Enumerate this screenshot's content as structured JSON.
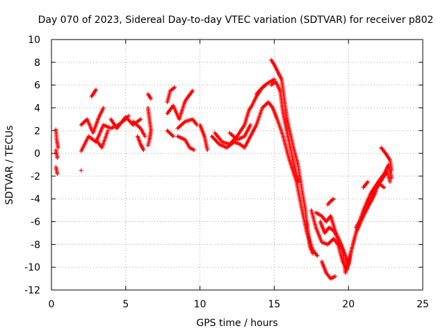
{
  "chart_data": {
    "type": "scatter",
    "title": "Day 070 of 2023, Sidereal Day-to-day VTEC variation (SDTVAR) for receiver p802",
    "xlabel": "GPS time / hours",
    "ylabel": "SDTVAR / TECUs",
    "xlim": [
      0,
      25
    ],
    "ylim": [
      -12,
      10
    ],
    "xticks": [
      0,
      5,
      10,
      15,
      20,
      25
    ],
    "yticks": [
      -12,
      -10,
      -8,
      -6,
      -4,
      -2,
      0,
      2,
      4,
      6,
      8,
      10
    ],
    "grid": true,
    "marker": "+",
    "color": "#ff0000",
    "segments": [
      [
        [
          0.3,
          2.1
        ],
        [
          0.35,
          1.2
        ],
        [
          0.45,
          0.5
        ]
      ],
      [
        [
          0.3,
          0.3
        ],
        [
          0.4,
          -0.4
        ]
      ],
      [
        [
          0.3,
          -1.2
        ],
        [
          0.4,
          -1.8
        ]
      ],
      [
        [
          2.0,
          -1.5
        ]
      ],
      [
        [
          2.0,
          0.2
        ],
        [
          2.5,
          1.5
        ],
        [
          3.0,
          1.0
        ],
        [
          3.5,
          2.5
        ],
        [
          4.0,
          2.2
        ],
        [
          4.5,
          2.5
        ],
        [
          5.0,
          3.0
        ],
        [
          5.2,
          3.3
        ]
      ],
      [
        [
          2.0,
          2.5
        ],
        [
          2.4,
          3.0
        ],
        [
          2.8,
          1.8
        ],
        [
          3.2,
          3.2
        ],
        [
          3.5,
          4.0
        ]
      ],
      [
        [
          2.7,
          5.0
        ],
        [
          3.0,
          5.6
        ]
      ],
      [
        [
          3.0,
          1.2
        ],
        [
          3.4,
          0.5
        ],
        [
          3.8,
          2.0
        ]
      ],
      [
        [
          4.0,
          3.0
        ],
        [
          4.4,
          2.2
        ],
        [
          5.0,
          3.2
        ],
        [
          5.5,
          2.5
        ],
        [
          5.8,
          2.8
        ],
        [
          6.0,
          3.0
        ]
      ],
      [
        [
          5.5,
          2.8
        ],
        [
          6.0,
          2.2
        ],
        [
          6.3,
          1.5
        ]
      ],
      [
        [
          5.8,
          1.5
        ],
        [
          6.0,
          0.8
        ],
        [
          6.2,
          0.3
        ]
      ],
      [
        [
          6.5,
          5.2
        ],
        [
          6.7,
          4.8
        ]
      ],
      [
        [
          6.5,
          4.0
        ],
        [
          6.6,
          3.0
        ],
        [
          6.7,
          2.0
        ],
        [
          6.6,
          1.2
        ],
        [
          6.5,
          0.7
        ]
      ],
      [
        [
          7.8,
          4.5
        ],
        [
          8.0,
          5.5
        ],
        [
          8.3,
          5.8
        ]
      ],
      [
        [
          7.8,
          3.5
        ],
        [
          8.2,
          4.2
        ],
        [
          8.6,
          3.0
        ],
        [
          9.0,
          4.6
        ],
        [
          9.5,
          5.5
        ]
      ],
      [
        [
          7.8,
          2.0
        ],
        [
          8.2,
          1.5
        ]
      ],
      [
        [
          8.5,
          2.2
        ],
        [
          9.0,
          2.8
        ],
        [
          9.5,
          3.0
        ],
        [
          9.8,
          2.5
        ]
      ],
      [
        [
          8.5,
          1.5
        ],
        [
          9.0,
          1.2
        ],
        [
          9.3,
          0.5
        ],
        [
          9.6,
          0.3
        ]
      ],
      [
        [
          10.0,
          2.5
        ],
        [
          10.3,
          1.5
        ],
        [
          10.5,
          0.3
        ]
      ],
      [
        [
          11.0,
          1.8
        ],
        [
          11.5,
          1.0
        ],
        [
          12.0,
          0.8
        ],
        [
          12.5,
          1.5
        ],
        [
          13.0,
          2.5
        ],
        [
          13.3,
          3.8
        ],
        [
          13.5,
          4.2
        ],
        [
          13.8,
          5.0
        ],
        [
          14.2,
          5.8
        ],
        [
          14.6,
          6.2
        ],
        [
          15.0,
          6.5
        ]
      ],
      [
        [
          10.8,
          1.5
        ],
        [
          11.3,
          0.8
        ],
        [
          11.8,
          0.5
        ],
        [
          12.3,
          1.0
        ],
        [
          12.7,
          0.8
        ],
        [
          13.0,
          0.5
        ],
        [
          13.4,
          1.5
        ],
        [
          13.8,
          2.5
        ],
        [
          14.2,
          4.0
        ],
        [
          14.6,
          4.5
        ],
        [
          14.9,
          4.0
        ],
        [
          15.2,
          3.0
        ],
        [
          15.6,
          1.5
        ],
        [
          16.0,
          -0.5
        ],
        [
          16.5,
          -2.5
        ],
        [
          16.8,
          -4.5
        ],
        [
          17.2,
          -7.0
        ],
        [
          17.6,
          -8.5
        ],
        [
          17.9,
          -9.0
        ]
      ],
      [
        [
          12.0,
          1.8
        ],
        [
          12.5,
          1.2
        ],
        [
          13.0,
          1.5
        ],
        [
          13.4,
          2.5
        ]
      ],
      [
        [
          13.8,
          5.2
        ],
        [
          14.0,
          5.5
        ],
        [
          14.4,
          6.0
        ]
      ],
      [
        [
          14.8,
          8.2
        ],
        [
          15.0,
          7.8
        ],
        [
          15.3,
          7.0
        ],
        [
          15.5,
          6.5
        ],
        [
          15.7,
          4.5
        ],
        [
          15.9,
          2.8
        ],
        [
          16.3,
          0.5
        ],
        [
          16.6,
          -1.0
        ],
        [
          16.9,
          -3.5
        ],
        [
          17.1,
          -5.0
        ],
        [
          17.2,
          -6.5
        ]
      ],
      [
        [
          14.8,
          6.0
        ],
        [
          15.1,
          6.3
        ],
        [
          15.4,
          5.5
        ],
        [
          15.6,
          3.5
        ],
        [
          16.0,
          1.0
        ],
        [
          16.3,
          -0.8
        ],
        [
          16.6,
          -2.5
        ]
      ],
      [
        [
          17.5,
          -5.0
        ],
        [
          17.8,
          -6.5
        ],
        [
          18.2,
          -7.8
        ],
        [
          18.6,
          -8.0
        ],
        [
          19.0,
          -7.5
        ],
        [
          19.3,
          -8.0
        ],
        [
          19.6,
          -9.5
        ],
        [
          19.9,
          -10.2
        ],
        [
          20.1,
          -9.0
        ],
        [
          20.5,
          -7.0
        ],
        [
          21.0,
          -5.5
        ],
        [
          21.5,
          -4.0
        ],
        [
          22.0,
          -2.8
        ],
        [
          22.3,
          -2.2
        ],
        [
          22.6,
          -1.6
        ],
        [
          22.8,
          -2.5
        ]
      ],
      [
        [
          17.8,
          -5.2
        ],
        [
          18.2,
          -5.5
        ],
        [
          18.5,
          -6.0
        ],
        [
          18.8,
          -5.5
        ],
        [
          19.1,
          -6.8
        ],
        [
          19.5,
          -8.0
        ],
        [
          19.8,
          -9.0
        ],
        [
          20.0,
          -9.8
        ],
        [
          20.2,
          -8.5
        ],
        [
          20.6,
          -6.5
        ],
        [
          21.0,
          -5.0
        ],
        [
          21.5,
          -3.5
        ],
        [
          22.0,
          -2.5
        ],
        [
          22.4,
          -1.8
        ],
        [
          22.7,
          -1.0
        ],
        [
          22.9,
          -2.2
        ]
      ],
      [
        [
          18.1,
          -6.0
        ],
        [
          18.4,
          -7.0
        ],
        [
          18.7,
          -6.5
        ],
        [
          19.0,
          -6.8
        ],
        [
          19.3,
          -7.5
        ],
        [
          19.6,
          -8.5
        ],
        [
          19.8,
          -10.5
        ],
        [
          20.0,
          -9.5
        ]
      ],
      [
        [
          17.2,
          -6.0
        ],
        [
          17.4,
          -8.2
        ],
        [
          17.6,
          -8.8
        ]
      ],
      [
        [
          18.2,
          -9.5
        ],
        [
          18.5,
          -10.5
        ],
        [
          18.8,
          -11.0
        ],
        [
          19.1,
          -10.8
        ]
      ],
      [
        [
          18.6,
          -4.5
        ],
        [
          18.8,
          -4.2
        ],
        [
          19.0,
          -4.0
        ]
      ],
      [
        [
          20.5,
          -6.5
        ],
        [
          21.0,
          -5.5
        ],
        [
          21.4,
          -4.5
        ],
        [
          21.8,
          -3.5
        ],
        [
          22.0,
          -2.6
        ],
        [
          22.2,
          -2.8
        ],
        [
          22.4,
          -3.0
        ]
      ],
      [
        [
          22.2,
          0.5
        ],
        [
          22.5,
          0.0
        ],
        [
          22.8,
          -0.6
        ],
        [
          22.9,
          -1.5
        ]
      ],
      [
        [
          21.0,
          -3.0
        ],
        [
          21.3,
          -2.5
        ]
      ]
    ]
  }
}
